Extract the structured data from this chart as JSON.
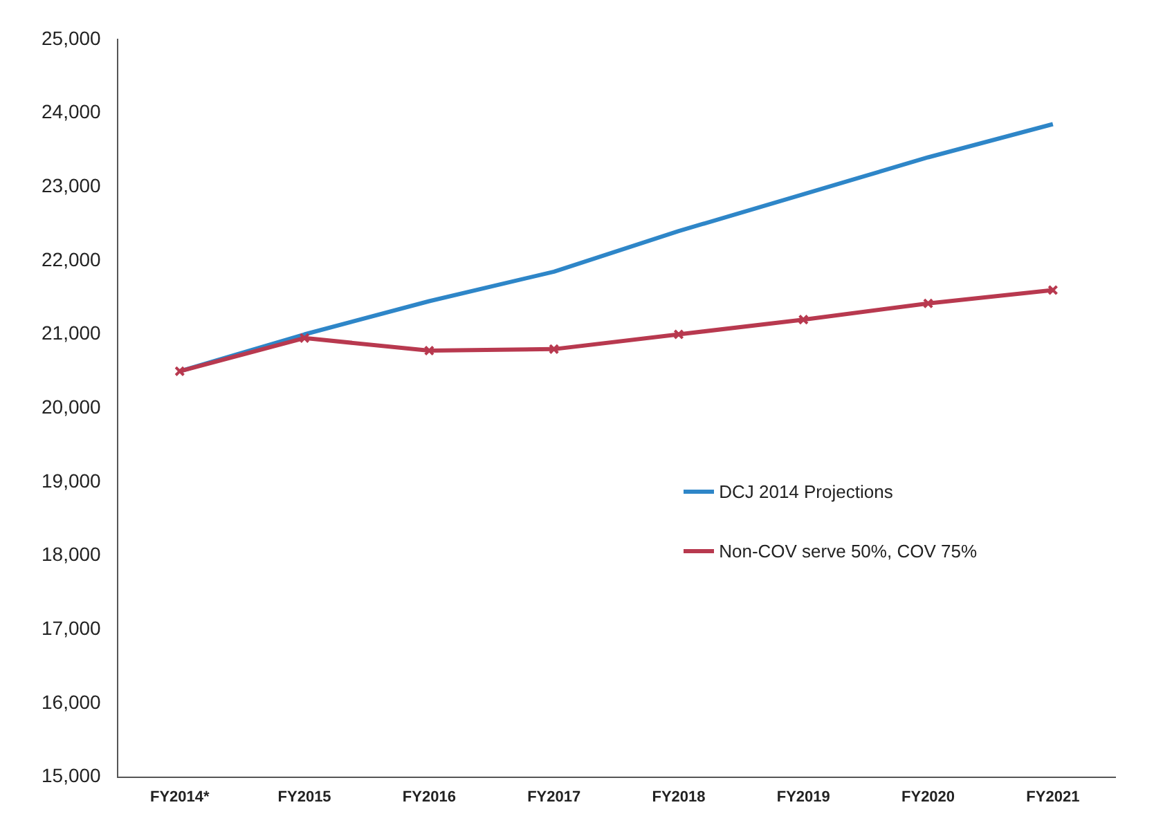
{
  "chart_data": {
    "type": "line",
    "categories": [
      "FY2014*",
      "FY2015",
      "FY2016",
      "FY2017",
      "FY2018",
      "FY2019",
      "FY2020",
      "FY2021"
    ],
    "series": [
      {
        "name": "DCJ 2014 Projections",
        "color": "#2e86c8",
        "marker": "none",
        "values": [
          20500,
          21000,
          21450,
          21850,
          22400,
          22900,
          23400,
          23850
        ]
      },
      {
        "name": "Non-COV serve 50%, COV 75%",
        "color": "#b8394f",
        "values": [
          20500,
          20950,
          20780,
          20800,
          21000,
          21200,
          21420,
          21600
        ]
      }
    ],
    "ylim": [
      15000,
      25000
    ],
    "yticks": [
      {
        "value": 15000,
        "label": "15,000"
      },
      {
        "value": 16000,
        "label": "16,000"
      },
      {
        "value": 17000,
        "label": "17,000"
      },
      {
        "value": 18000,
        "label": "18,000"
      },
      {
        "value": 19000,
        "label": "19,000"
      },
      {
        "value": 20000,
        "label": "20,000"
      },
      {
        "value": 21000,
        "label": "21,000"
      },
      {
        "value": 22000,
        "label": "22,000"
      },
      {
        "value": 23000,
        "label": "23,000"
      },
      {
        "value": 24000,
        "label": "24,000"
      },
      {
        "value": 25000,
        "label": "25,000"
      }
    ],
    "grid": false,
    "legend": "right",
    "marker": "cross",
    "line_style": "solid"
  }
}
